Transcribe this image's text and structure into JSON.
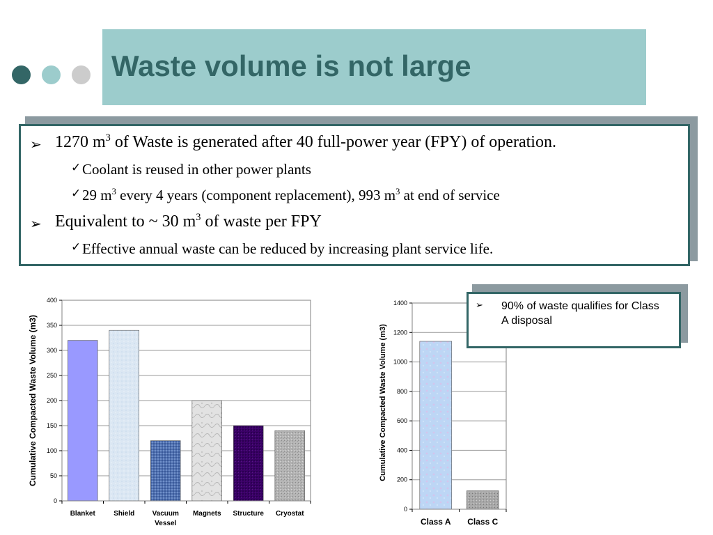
{
  "slide": {
    "title": "Waste volume is not large",
    "dots": [
      {
        "name": "dot-dark",
        "color": "#336666"
      },
      {
        "name": "dot-teal",
        "color": "#9ccccc"
      },
      {
        "name": "dot-gray",
        "color": "#cccccc"
      }
    ]
  },
  "bullets": {
    "b1": {
      "pre": "1270 m",
      "sup": "3",
      "post": " of Waste is generated after 40 full-power year (FPY) of operation."
    },
    "b1a": {
      "text": "Coolant is reused in other power plants"
    },
    "b1b": {
      "pre": "29 m",
      "sup": "3",
      "mid": " every 4 years (component replacement), 993 m",
      "sup2": "3",
      "post": " at end of service"
    },
    "b2": {
      "pre": "Equivalent to ~ 30 m",
      "sup": "3",
      "post": " of waste per FPY"
    },
    "b2a": {
      "text": "Effective annual waste can be reduced by increasing plant service life."
    }
  },
  "callout": {
    "text": "90% of waste qualifies for Class A disposal"
  },
  "chart_data": [
    {
      "type": "bar",
      "categories": [
        "Blanket",
        "Shield",
        "Vacuum Vessel",
        "Magnets",
        "Structure",
        "Cryostat"
      ],
      "values": [
        320,
        340,
        120,
        200,
        150,
        140
      ],
      "ylabel": "Cumulative Compacted Waste Volume (m3)",
      "xlabel": "",
      "ylim": [
        0,
        400
      ],
      "yticks": [
        0,
        50,
        100,
        150,
        200,
        250,
        300,
        350,
        400
      ],
      "grid": true,
      "colors": [
        "#9999ff",
        "#dde8f4",
        "#4d6fb3",
        "#d4d4d4",
        "#3d0066",
        "#b0b0b0"
      ]
    },
    {
      "type": "bar",
      "categories": [
        "Class A",
        "Class C"
      ],
      "values": [
        1140,
        125
      ],
      "ylabel": "Cumulative Compacted Waste Volume (m3)",
      "xlabel": "",
      "ylim": [
        0,
        1400
      ],
      "yticks": [
        0,
        200,
        400,
        600,
        800,
        1000,
        1200,
        1400
      ],
      "grid": true,
      "colors": [
        "#bcd4f4",
        "#a9a9a9"
      ]
    }
  ]
}
